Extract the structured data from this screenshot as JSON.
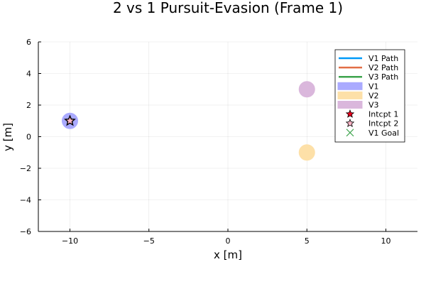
{
  "chart_data": {
    "type": "scatter",
    "title": "2 vs 1 Pursuit-Evasion (Frame 1)",
    "xlabel": "x [m]",
    "ylabel": "y [m]",
    "xlim": [
      -12,
      12
    ],
    "ylim": [
      -6,
      6
    ],
    "xticks": [
      -10,
      -5,
      0,
      5,
      10
    ],
    "xtick_labels": [
      "−10",
      "−5",
      "0",
      "5",
      "10"
    ],
    "yticks": [
      -6,
      -4,
      -2,
      0,
      2,
      4,
      6
    ],
    "ytick_labels": [
      "−6",
      "−4",
      "−2",
      "0",
      "2",
      "4",
      "6"
    ],
    "grid": true,
    "legend_position": "top-right",
    "series": [
      {
        "name": "V1 Path",
        "kind": "line",
        "color": "#009af9",
        "points": []
      },
      {
        "name": "V2 Path",
        "kind": "line",
        "color": "#e26f46",
        "points": []
      },
      {
        "name": "V3 Path",
        "kind": "line",
        "color": "#3da44d",
        "points": []
      },
      {
        "name": "V1",
        "kind": "disk",
        "color": "#aaaaff",
        "points": [
          [
            -10,
            1
          ]
        ]
      },
      {
        "name": "V2",
        "kind": "disk",
        "color": "#fde0a8",
        "points": [
          [
            5,
            -1
          ]
        ]
      },
      {
        "name": "V3",
        "kind": "disk",
        "color": "#dab7dc",
        "points": [
          [
            5,
            3
          ]
        ]
      },
      {
        "name": "Intcpt 1",
        "kind": "star",
        "color": "#e8001c",
        "points": [
          [
            -10,
            1
          ]
        ]
      },
      {
        "name": "Intcpt 2",
        "kind": "star",
        "color": "#ffb6c8",
        "points": [
          [
            -10,
            1
          ]
        ]
      },
      {
        "name": "V1 Goal",
        "kind": "x",
        "color": "#3da44d",
        "points": []
      }
    ]
  }
}
